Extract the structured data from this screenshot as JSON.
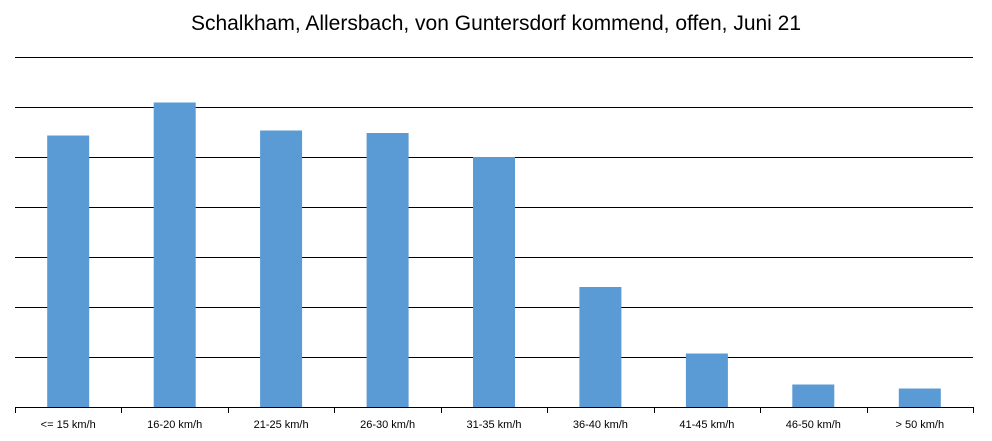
{
  "chart_data": {
    "type": "bar",
    "title": "Schalkham, Allersbach, von Guntersdorf kommend, offen, Juni 21",
    "xlabel": "",
    "ylabel": "",
    "categories": [
      "<= 15 km/h",
      "16-20 km/h",
      "21-25 km/h",
      "26-30 km/h",
      "31-35 km/h",
      "36-40 km/h",
      "41-45 km/h",
      "46-50 km/h",
      "> 50 km/h"
    ],
    "values": [
      5.43,
      6.09,
      5.53,
      5.48,
      5.0,
      2.4,
      1.07,
      0.45,
      0.37
    ],
    "ylim": [
      0,
      7
    ],
    "grid": true,
    "legend": "none",
    "bar_color": "#5b9bd5",
    "grid_color": "#000000"
  }
}
